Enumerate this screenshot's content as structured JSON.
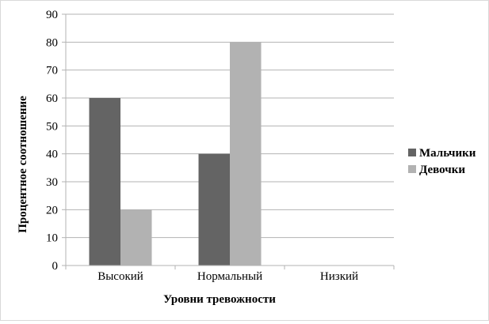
{
  "chart_data": {
    "type": "bar",
    "title": "",
    "xlabel": "Уровни тревожности",
    "ylabel": "Процентное соотношение",
    "categories": [
      "Высокий",
      "Нормальный",
      "Низкий"
    ],
    "series": [
      {
        "name": "Мальчики",
        "values": [
          60,
          40,
          0
        ],
        "color": "#646464"
      },
      {
        "name": "Девочки",
        "values": [
          20,
          80,
          0
        ],
        "color": "#b2b2b2"
      }
    ],
    "ylim": [
      0,
      90
    ],
    "yticks": [
      0,
      10,
      20,
      30,
      40,
      50,
      60,
      70,
      80,
      90
    ],
    "grid": true,
    "legend_position": "right"
  }
}
